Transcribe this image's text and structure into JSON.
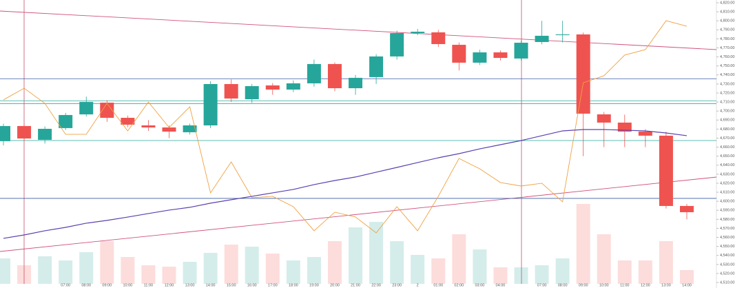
{
  "chart_data": {
    "type": "candlestick",
    "categories": [
      null,
      null,
      null,
      "07:00",
      "08:00",
      "09:00",
      "10:00",
      "11:00",
      "12:00",
      "13:00",
      "14:00",
      "15:00",
      "16:00",
      "17:00",
      "18:00",
      "19:00",
      "20:00",
      "21:00",
      "22:00",
      "23:00",
      "2",
      "01:00",
      "02:00",
      "03:00",
      "04:00",
      null,
      "07:00",
      "08:00",
      "09:00",
      "10:00",
      "11:00",
      "12:00",
      "13:00",
      "14:00"
    ],
    "open": [
      4666.6,
      4683.4,
      4668.1,
      4681.1,
      4696.3,
      4709.3,
      4692.5,
      4684.1,
      4681.8,
      4676.5,
      4684.1,
      4729.9,
      4713.1,
      4728.4,
      4723.8,
      4730.7,
      4752.1,
      4725.3,
      4737.6,
      4760.5,
      4786.4,
      4787.2,
      4773.4,
      4753.6,
      4765.0,
      4758.2,
      4776.5,
      4784.1,
      4784.9,
      4696.3,
      4687.2,
      4677.2,
      4672.7,
      4594.8
    ],
    "high": [
      4686,
      4686,
      4683,
      4698,
      4716,
      4712,
      4695,
      4690,
      4684,
      4686,
      4733,
      4735,
      4730,
      4731,
      4734,
      4757,
      4754,
      4740,
      4763,
      4789,
      4791,
      4790,
      4776,
      4768,
      4767,
      4778,
      4800,
      4800,
      4787,
      4699,
      4696,
      4680,
      4677,
      4597
    ],
    "low": [
      4662,
      4667,
      4664,
      4679,
      4694,
      4688,
      4682,
      4678,
      4670,
      4674,
      4681,
      4710,
      4709,
      4718,
      4721,
      4727,
      4722,
      4718,
      4730,
      4757,
      4784,
      4771,
      4745,
      4751,
      4756,
      4756,
      4774,
      4776,
      4650,
      4660,
      4660,
      4660,
      4592,
      4580
    ],
    "close": [
      4683.4,
      4669.6,
      4680.3,
      4695.6,
      4710.1,
      4692.5,
      4684.9,
      4681.8,
      4677.2,
      4684.1,
      4729.9,
      4713.9,
      4727.6,
      4723.8,
      4730.7,
      4752.1,
      4725.3,
      4736.8,
      4760.5,
      4786.4,
      4787.9,
      4774.2,
      4753.6,
      4765.0,
      4758.9,
      4775.7,
      4783.4,
      4784.9,
      4697.1,
      4687.2,
      4677.2,
      4672.7,
      4594.8,
      4587.9
    ],
    "up_color": "#26a69a",
    "down_color": "#ef5350",
    "volume": [
      37,
      27,
      40,
      34,
      46,
      62,
      39,
      27,
      25,
      32,
      45,
      57,
      54,
      44,
      34,
      39,
      62,
      82,
      90,
      62,
      42,
      37,
      72,
      50,
      24,
      24,
      27,
      37,
      116,
      72,
      34,
      34,
      62,
      20
    ],
    "vlim": [
      0,
      116
    ],
    "series": [
      {
        "color": "#f0a040",
        "values": [
          4712.4,
          4725.3,
          4708.5,
          4674.2,
          4674.2,
          4708.5,
          4678.0,
          4710.0,
          4681.8,
          4704.7,
          4609.3,
          4643.6,
          4604.0,
          4605.5,
          4594.0,
          4567.3,
          4587.9,
          4582.6,
          4565.0,
          4594.0,
          4567.3,
          4605.5,
          4647.5,
          4636.0,
          4620.8,
          4616.9,
          4620.0,
          4599.4,
          4731.4,
          4739.1,
          4762.0,
          4768.1,
          4800.1,
          4794.0
        ]
      },
      {
        "color": "#5b3fb0",
        "values": [
          4558.9,
          4562.7,
          4567.3,
          4571.1,
          4575.7,
          4578.8,
          4582.5,
          4586.4,
          4590.2,
          4593.3,
          4597.9,
          4601.7,
          4605.5,
          4609.3,
          4613.1,
          4618.5,
          4623.0,
          4626.9,
          4632.2,
          4637.5,
          4642.9,
          4648.2,
          4652.8,
          4658.1,
          4662.7,
          4667.3,
          4672.7,
          4678.0,
          4679.5,
          4679.5,
          4678.8,
          4678.0,
          4675.7,
          4672.7
        ]
      }
    ],
    "levels": [
      {
        "value": 4735.8,
        "color": "#3b5ba5"
      },
      {
        "value": 4711.4,
        "color": "#26a69a"
      },
      {
        "value": 4708.3,
        "color": "#26a69a"
      },
      {
        "value": 4667.3,
        "color": "#26a69a"
      },
      {
        "value": 4603.2,
        "color": "#3b5ba5"
      }
    ],
    "ylim": [
      4510,
      4820
    ],
    "yticks": [
      {
        "value": 4820,
        "label": "4,820.00"
      },
      {
        "value": 4810,
        "label": "4,810.00"
      },
      {
        "value": 4800,
        "label": "4,800.00"
      },
      {
        "value": 4790,
        "label": "4,790.00"
      },
      {
        "value": 4780,
        "label": "4,780.00"
      },
      {
        "value": 4770,
        "label": "4,770.00"
      },
      {
        "value": 4760,
        "label": "4,760.00"
      },
      {
        "value": 4750,
        "label": "4,750.00"
      },
      {
        "value": 4740,
        "label": "4,740.00"
      },
      {
        "value": 4730,
        "label": "4,730.00"
      },
      {
        "value": 4720,
        "label": "4,720.00"
      },
      {
        "value": 4710,
        "label": "4,710.00"
      },
      {
        "value": 4700,
        "label": "4,700.00"
      },
      {
        "value": 4690,
        "label": "4,690.00"
      },
      {
        "value": 4680,
        "label": "4,680.00"
      },
      {
        "value": 4670,
        "label": "4,670.00"
      },
      {
        "value": 4660,
        "label": "4,660.00"
      },
      {
        "value": 4650,
        "label": "4,650.00"
      },
      {
        "value": 4640,
        "label": "4,640.00"
      },
      {
        "value": 4630,
        "label": "4,630.00"
      },
      {
        "value": 4620,
        "label": "4,620.00"
      },
      {
        "value": 4610,
        "label": "4,610.00"
      },
      {
        "value": 4600,
        "label": "4,600.00"
      },
      {
        "value": 4590,
        "label": "4,590.00"
      },
      {
        "value": 4580,
        "label": "4,580.00"
      },
      {
        "value": 4570,
        "label": "4,570.00"
      },
      {
        "value": 4560,
        "label": "4,560.00"
      },
      {
        "value": 4550,
        "label": "4,550.00"
      },
      {
        "value": 4540,
        "label": "4,540.00"
      },
      {
        "value": 4530,
        "label": "4,530.00"
      },
      {
        "value": 4520,
        "label": "4,520.00"
      },
      {
        "value": 4510,
        "label": "4,510.00"
      }
    ]
  }
}
